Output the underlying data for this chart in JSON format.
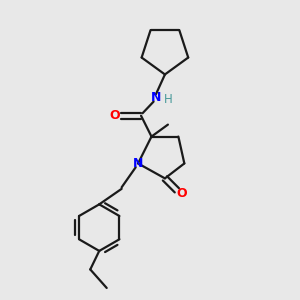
{
  "bg_color": "#e8e8e8",
  "bond_color": "#1a1a1a",
  "N_color": "#0000ff",
  "O_color": "#ff0000",
  "H_color": "#4a9a9a",
  "line_width": 1.6,
  "figsize": [
    3.0,
    3.0
  ],
  "dpi": 100,
  "xlim": [
    0,
    10
  ],
  "ylim": [
    0,
    10
  ]
}
